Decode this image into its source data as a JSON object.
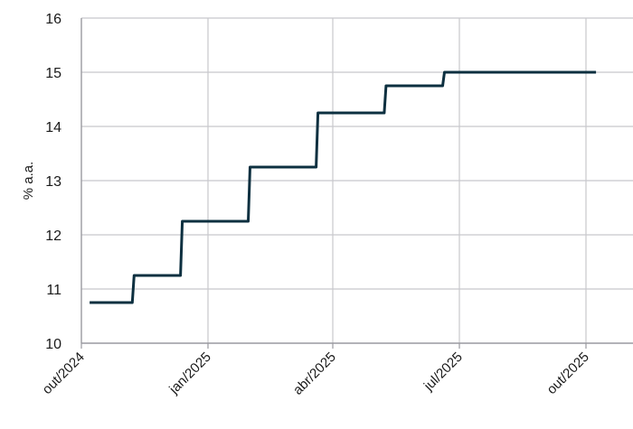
{
  "chart_data": {
    "type": "line",
    "title": "",
    "xlabel": "",
    "ylabel": "% a.a.",
    "ylim": [
      10,
      16
    ],
    "yticks": [
      "10",
      "11",
      "12",
      "13",
      "14",
      "15",
      "16"
    ],
    "xticks": [
      "out/2024",
      "jan/2025",
      "abr/2025",
      "jul/2025",
      "out/2025"
    ],
    "xlim": [
      "2024-10-01",
      "2025-10-31"
    ],
    "grid": true,
    "legend": "none",
    "series": [
      {
        "color": "#0d3040",
        "step": true,
        "points": [
          {
            "x": "2024-10-07",
            "y": 10.75
          },
          {
            "x": "2024-11-07",
            "y": 11.25
          },
          {
            "x": "2024-12-12",
            "y": 12.25
          },
          {
            "x": "2025-01-30",
            "y": 13.25
          },
          {
            "x": "2025-03-20",
            "y": 14.25
          },
          {
            "x": "2025-05-08",
            "y": 14.75
          },
          {
            "x": "2025-06-19",
            "y": 15.0
          },
          {
            "x": "2025-10-07",
            "y": 15.0
          }
        ]
      }
    ],
    "grid_color": "#c8c8cc",
    "axis_color": "#9a9aa0"
  }
}
